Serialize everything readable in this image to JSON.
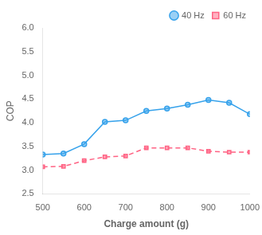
{
  "chart_data": {
    "type": "line",
    "x": [
      500,
      550,
      600,
      650,
      700,
      750,
      800,
      850,
      900,
      950,
      1000
    ],
    "series": [
      {
        "name": "40 Hz",
        "marker": "circle",
        "line_style": "solid",
        "values": [
          3.33,
          3.35,
          3.55,
          4.02,
          4.05,
          4.25,
          4.3,
          4.38,
          4.48,
          4.42,
          4.18
        ]
      },
      {
        "name": "60 Hz",
        "marker": "square",
        "line_style": "dashed",
        "values": [
          3.07,
          3.08,
          3.2,
          3.28,
          3.3,
          3.47,
          3.47,
          3.47,
          3.4,
          3.38,
          3.38
        ]
      }
    ],
    "xlabel": "Charge amount (g)",
    "ylabel": "COP",
    "xlim": [
      500,
      1000
    ],
    "ylim": [
      2.5,
      6.0
    ],
    "xticks": [
      500,
      600,
      700,
      800,
      900,
      1000
    ],
    "yticks": [
      2.5,
      {
        "value": 3.0,
        "label": "3.0"
      },
      3.5,
      {
        "value": 4.0,
        "label": "4.0"
      },
      4.5,
      {
        "value": 5.0,
        "label": "5.0"
      },
      5.5,
      {
        "value": 6.0,
        "label": "6.0"
      }
    ],
    "grid": false,
    "legend": "upper right"
  }
}
